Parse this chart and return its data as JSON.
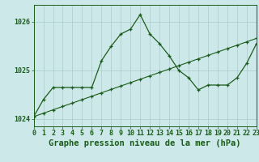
{
  "title": "Graphe pression niveau de la mer (hPa)",
  "bg_color": "#cce8e8",
  "grid_color": "#aacccc",
  "line_color": "#1a5c1a",
  "x_labels": [
    "0",
    "1",
    "2",
    "3",
    "4",
    "5",
    "6",
    "7",
    "8",
    "9",
    "10",
    "11",
    "12",
    "13",
    "14",
    "15",
    "16",
    "17",
    "18",
    "19",
    "20",
    "21",
    "22",
    "23"
  ],
  "x_values": [
    0,
    1,
    2,
    3,
    4,
    5,
    6,
    7,
    8,
    9,
    10,
    11,
    12,
    13,
    14,
    15,
    16,
    17,
    18,
    19,
    20,
    21,
    22,
    23
  ],
  "y_line1": [
    1024.05,
    1024.4,
    1024.65,
    1024.65,
    1024.65,
    1024.65,
    1024.65,
    1025.2,
    1025.5,
    1025.75,
    1025.85,
    1026.15,
    1025.75,
    1025.55,
    1025.3,
    1025.0,
    1024.85,
    1024.6,
    1024.7,
    1024.7,
    1024.7,
    1024.85,
    1025.15,
    1025.55
  ],
  "y_line2": [
    1024.05,
    1024.12,
    1024.19,
    1024.26,
    1024.33,
    1024.4,
    1024.47,
    1024.54,
    1024.61,
    1024.68,
    1024.75,
    1024.82,
    1024.89,
    1024.96,
    1025.03,
    1025.1,
    1025.17,
    1025.24,
    1025.31,
    1025.38,
    1025.45,
    1025.52,
    1025.59,
    1025.66
  ],
  "ylim": [
    1023.85,
    1026.35
  ],
  "yticks": [
    1024,
    1025,
    1026
  ],
  "tick_fontsize": 6,
  "title_fontsize": 7.5
}
